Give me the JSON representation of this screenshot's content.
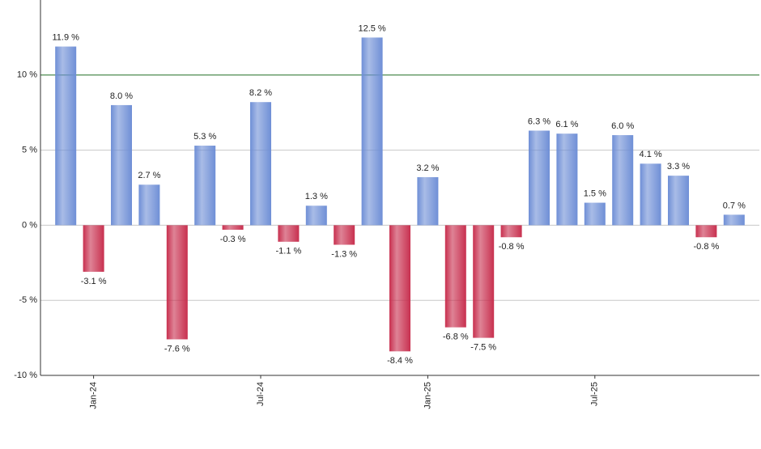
{
  "chart_data": {
    "type": "bar",
    "categories": [
      null,
      "Jan-24",
      null,
      null,
      null,
      null,
      null,
      "Jul-24",
      null,
      null,
      null,
      null,
      null,
      "Jan-25",
      null,
      null,
      null,
      null,
      null,
      "Jul-25",
      null,
      null,
      null,
      null,
      null
    ],
    "values": [
      11.9,
      -3.1,
      8.0,
      2.7,
      -7.6,
      5.3,
      -0.3,
      8.2,
      -1.1,
      1.3,
      -1.3,
      12.5,
      -8.4,
      3.2,
      -6.8,
      -7.5,
      -0.8,
      6.3,
      6.1,
      1.5,
      6.0,
      4.1,
      3.3,
      -0.8,
      0.7
    ],
    "value_labels": [
      "11.9 %",
      "-3.1 %",
      "8.0 %",
      "2.7 %",
      "-7.6 %",
      "5.3 %",
      "-0.3 %",
      "8.2 %",
      "-1.1 %",
      "1.3 %",
      "-1.3 %",
      "12.5 %",
      "-8.4 %",
      "3.2 %",
      "-6.8 %",
      "-7.5 %",
      "-0.8 %",
      "6.3 %",
      "6.1 %",
      "1.5 %",
      "6.0 %",
      "4.1 %",
      "3.3 %",
      "-0.8 %",
      "0.7 %"
    ],
    "positive_color": "#6f8fd6",
    "negative_color": "#c8304f",
    "ylim": [
      -10,
      15
    ],
    "yticks": [
      {
        "value": -10,
        "label": "-10 %"
      },
      {
        "value": -5,
        "label": "-5 %"
      },
      {
        "value": 0,
        "label": "0 %"
      },
      {
        "value": 5,
        "label": "5 %"
      },
      {
        "value": 10,
        "label": "10 %"
      }
    ],
    "grid": true,
    "highlight_line": {
      "value": 10,
      "color": "#2e7d32"
    }
  }
}
